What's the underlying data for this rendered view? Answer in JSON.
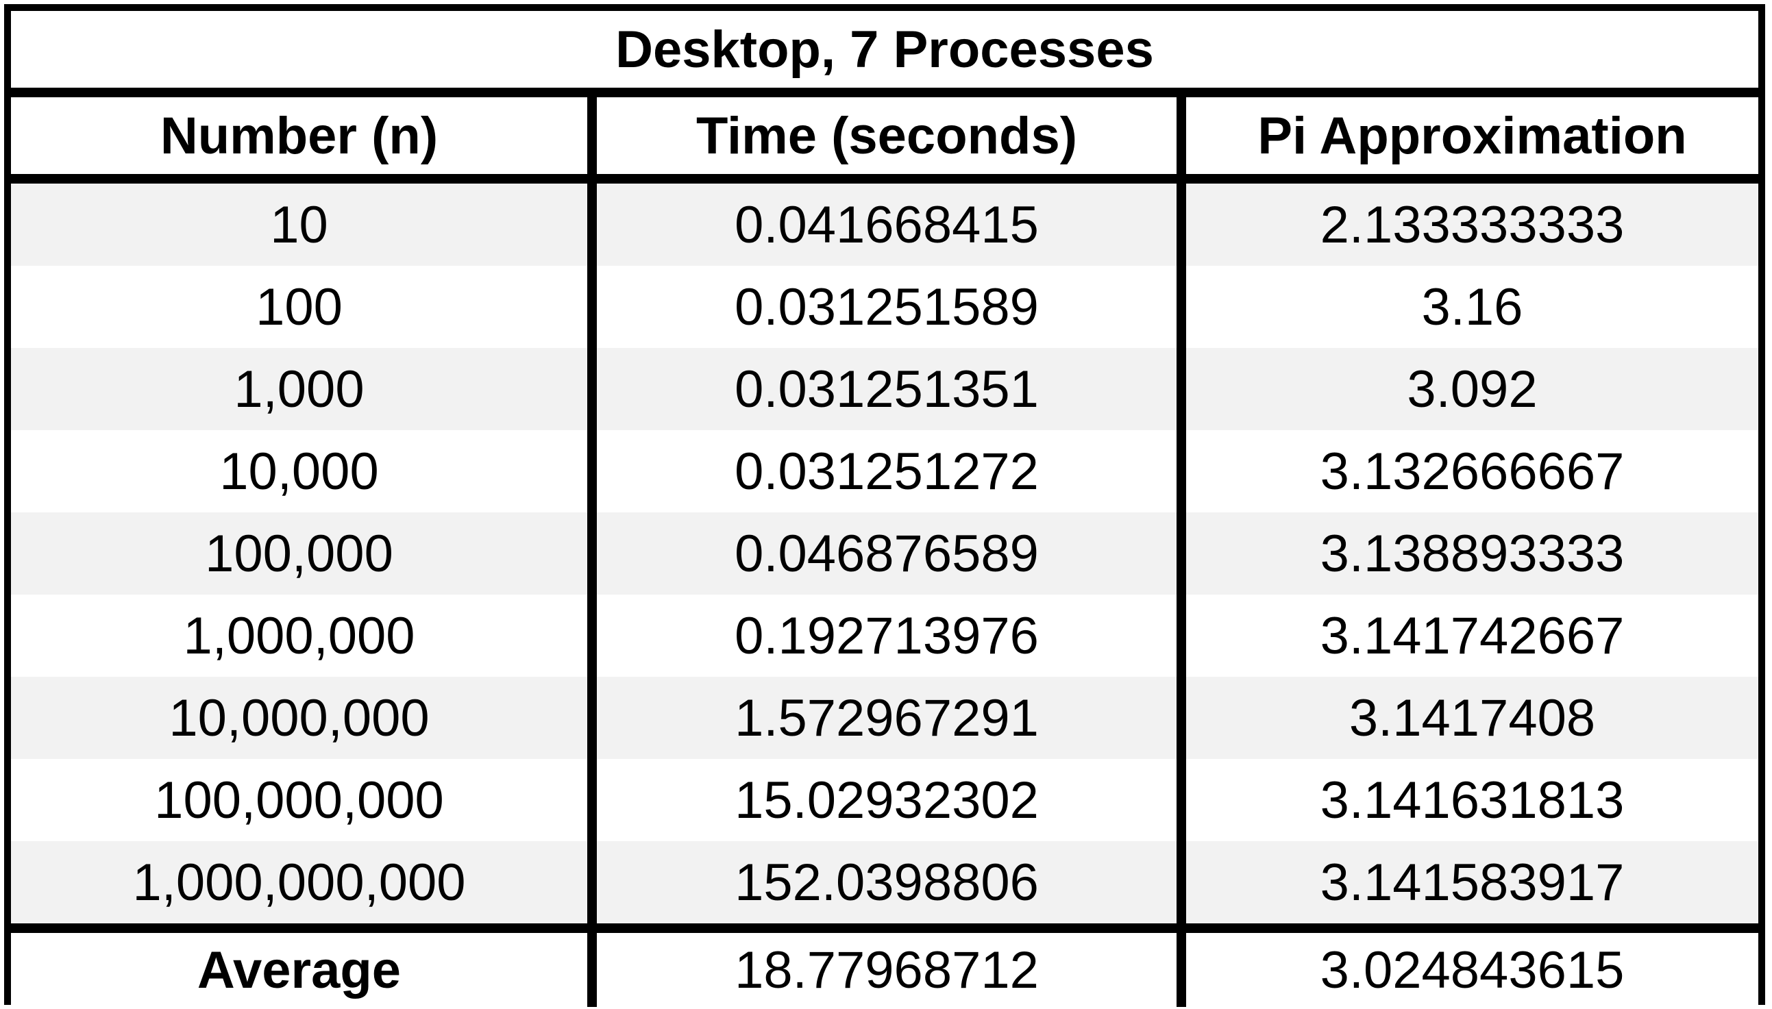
{
  "chart_data": {
    "type": "table",
    "title": "Desktop, 7 Processes",
    "columns": [
      "Number (n)",
      "Time (seconds)",
      "Pi Approximation"
    ],
    "rows": [
      [
        "10",
        "0.041668415",
        "2.133333333"
      ],
      [
        "100",
        "0.031251589",
        "3.16"
      ],
      [
        "1,000",
        "0.031251351",
        "3.092"
      ],
      [
        "10,000",
        "0.031251272",
        "3.132666667"
      ],
      [
        "100,000",
        "0.046876589",
        "3.138893333"
      ],
      [
        "1,000,000",
        "0.192713976",
        "3.141742667"
      ],
      [
        "10,000,000",
        "1.572967291",
        "3.1417408"
      ],
      [
        "100,000,000",
        "15.02932302",
        "3.141631813"
      ],
      [
        "1,000,000,000",
        "152.0398806",
        "3.141583917"
      ]
    ],
    "summary_row": [
      "Average",
      "18.77968712",
      "3.024843615"
    ],
    "colors": {
      "border": "#000000",
      "stripe": "#f2f2f2",
      "background": "#ffffff"
    }
  }
}
